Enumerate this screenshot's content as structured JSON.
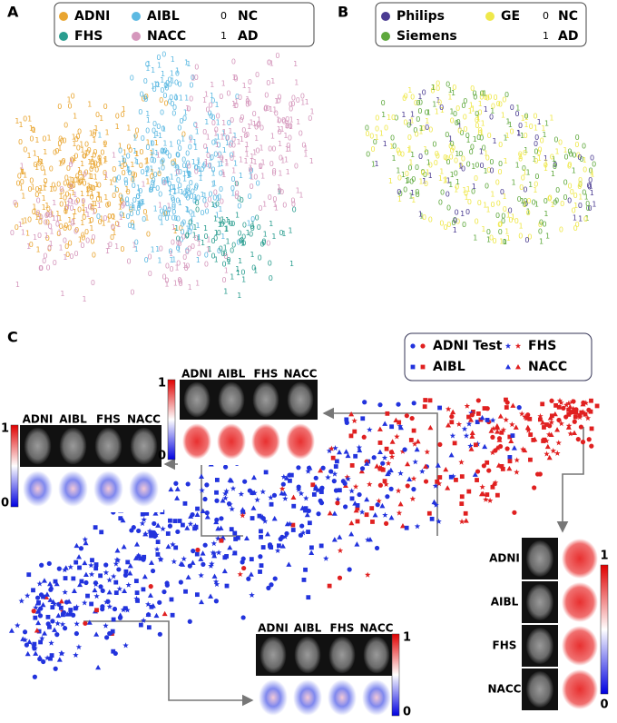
{
  "panel_a": {
    "label": "A",
    "legend": [
      "ADNI",
      "AIBL",
      "FHS",
      "NACC"
    ],
    "classes": [
      {
        "code": "0",
        "name": "NC"
      },
      {
        "code": "1",
        "name": "AD"
      }
    ]
  },
  "panel_b": {
    "label": "B",
    "legend": [
      "Philips",
      "Siemens",
      "GE"
    ],
    "classes": [
      {
        "code": "0",
        "name": "NC"
      },
      {
        "code": "1",
        "name": "AD"
      }
    ]
  },
  "panel_c": {
    "label": "C",
    "legend": [
      "ADNI Test",
      "AIBL",
      "FHS",
      "NACC"
    ],
    "insets": [
      {
        "columns": [
          "ADNI",
          "AIBL",
          "FHS",
          "NACC"
        ],
        "colorbar": [
          "1",
          "0"
        ]
      },
      {
        "columns": [
          "ADNI",
          "AIBL",
          "FHS",
          "NACC"
        ],
        "colorbar": [
          "1",
          "0"
        ]
      },
      {
        "columns": [
          "ADNI",
          "AIBL",
          "FHS",
          "NACC"
        ],
        "colorbar": [
          "1",
          "0"
        ]
      },
      {
        "columns": [
          "ADNI",
          "AIBL",
          "FHS",
          "NACC"
        ],
        "colorbar": [
          "1",
          "0"
        ]
      }
    ]
  }
}
